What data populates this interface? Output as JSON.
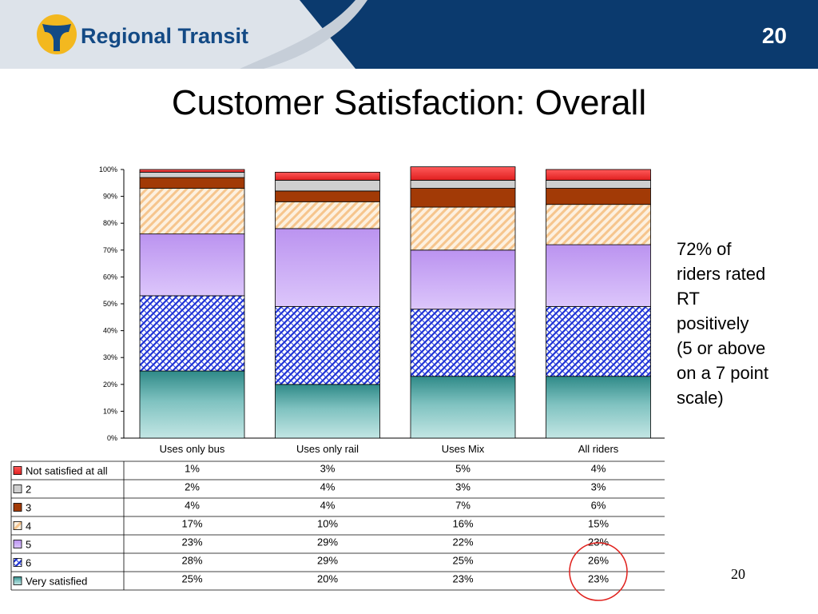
{
  "header": {
    "logo_text": "Regional Transit",
    "slide_number": "20",
    "colors": {
      "band": "#0b3a6e",
      "light": "#dde3ea",
      "logo_gold": "#f3b81f",
      "logo_blue": "#134a85"
    }
  },
  "title": "Customer Satisfaction: Overall",
  "callout": "72% of\nriders rated\nRT\npositively\n(5 or above\non a 7 point\nscale)",
  "footer_page": "20",
  "chart_data": {
    "type": "bar",
    "stacked": true,
    "categories": [
      "Uses only bus",
      "Uses only rail",
      "Uses Mix",
      "All riders"
    ],
    "y_ticks": [
      "0%",
      "10%",
      "20%",
      "30%",
      "40%",
      "50%",
      "60%",
      "70%",
      "80%",
      "90%",
      "100%"
    ],
    "ylim": [
      0,
      100
    ],
    "series": [
      {
        "name": "Very satisfied",
        "values": [
          25,
          20,
          23,
          23
        ],
        "labels": [
          "25%",
          "20%",
          "23%",
          "23%"
        ],
        "color": "#5fb5b0",
        "pattern": "gradient-teal"
      },
      {
        "name": "6",
        "values": [
          28,
          29,
          25,
          26
        ],
        "labels": [
          "28%",
          "29%",
          "25%",
          "26%"
        ],
        "color": "#1f33d6",
        "pattern": "blue-weave"
      },
      {
        "name": "5",
        "values": [
          23,
          29,
          22,
          23
        ],
        "labels": [
          "23%",
          "29%",
          "22%",
          "23%"
        ],
        "color": "#c9a6f5",
        "pattern": "gradient-violet"
      },
      {
        "name": "4",
        "values": [
          17,
          10,
          16,
          15
        ],
        "labels": [
          "17%",
          "10%",
          "16%",
          "15%"
        ],
        "color": "#f8cfa0",
        "pattern": "peach-diagonal"
      },
      {
        "name": "3",
        "values": [
          4,
          4,
          7,
          6
        ],
        "labels": [
          "4%",
          "4%",
          "7%",
          "6%"
        ],
        "color": "#a23a06",
        "pattern": "solid"
      },
      {
        "name": "2",
        "values": [
          2,
          4,
          3,
          3
        ],
        "labels": [
          "2%",
          "4%",
          "3%",
          "3%"
        ],
        "color": "#cfcfcf",
        "pattern": "solid"
      },
      {
        "name": "Not satisfied at all",
        "values": [
          1,
          3,
          5,
          4
        ],
        "labels": [
          "1%",
          "3%",
          "5%",
          "4%"
        ],
        "color": "#f23a3a",
        "pattern": "gradient-red"
      }
    ],
    "table_row_order": [
      "Not satisfied at all",
      "2",
      "3",
      "4",
      "5",
      "6",
      "Very satisfied"
    ],
    "highlight": {
      "category": "All riders",
      "series": [
        "6",
        "Very satisfied"
      ],
      "color": "#e0201c"
    },
    "grid": false
  }
}
